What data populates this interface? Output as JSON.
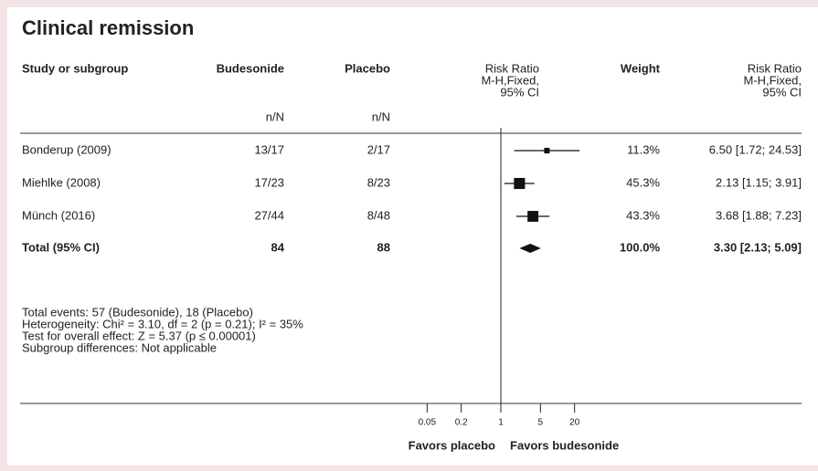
{
  "chart_data": {
    "type": "forest",
    "title": "Clinical remission",
    "headers": {
      "study": "Study or subgroup",
      "budesonide": "Budesonide",
      "placebo": "Placebo",
      "plot": [
        "Risk Ratio",
        "M-H,Fixed,",
        "95% CI"
      ],
      "weight": "Weight",
      "effect": [
        "Risk Ratio",
        "M-H,Fixed,",
        "95% CI"
      ],
      "counts": [
        "n/N",
        "n/N"
      ]
    },
    "studies": [
      {
        "name": "Bonderup (2009)",
        "budesonide": "13/17",
        "placebo": "2/17",
        "weight": 11.3,
        "weight_label": "11.3%",
        "effect_label": "6.50 [1.72; 24.53]",
        "rr": 6.5,
        "lo": 1.72,
        "hi": 24.53
      },
      {
        "name": "Miehlke (2008)",
        "budesonide": "17/23",
        "placebo": "8/23",
        "weight": 45.3,
        "weight_label": "45.3%",
        "effect_label": "2.13 [1.15; 3.91]",
        "rr": 2.13,
        "lo": 1.15,
        "hi": 3.91
      },
      {
        "name": "Münch (2016)",
        "budesonide": "27/44",
        "placebo": "8/48",
        "weight": 43.3,
        "weight_label": "43.3%",
        "effect_label": "3.68 [1.88; 7.23]",
        "rr": 3.68,
        "lo": 1.88,
        "hi": 7.23
      }
    ],
    "total": {
      "name": "Total (95% CI)",
      "budesonide": 84,
      "placebo": 88,
      "weight": 100.0,
      "weight_label": "100.0%",
      "effect_label": "3.30 [2.13; 5.09]",
      "rr": 3.3,
      "lo": 2.13,
      "hi": 5.09
    },
    "footnotes": [
      "Total events: 57 (Budesonide), 18 (Placebo)",
      "Heterogeneity: Chi² = 3.10, df = 2 (p = 0.21); I² = 35%",
      "Test for overall effect: Z = 5.37 (p ≤ 0.00001)",
      "Subgroup differences: Not applicable"
    ],
    "x_scale": "log",
    "xlim": [
      0.01,
      100
    ],
    "xticks": [
      0.05,
      0.2,
      1,
      5,
      20
    ],
    "reference": 1,
    "x_labels": [
      "Favors placebo",
      "Favors budesonide"
    ],
    "color": "#111111"
  }
}
